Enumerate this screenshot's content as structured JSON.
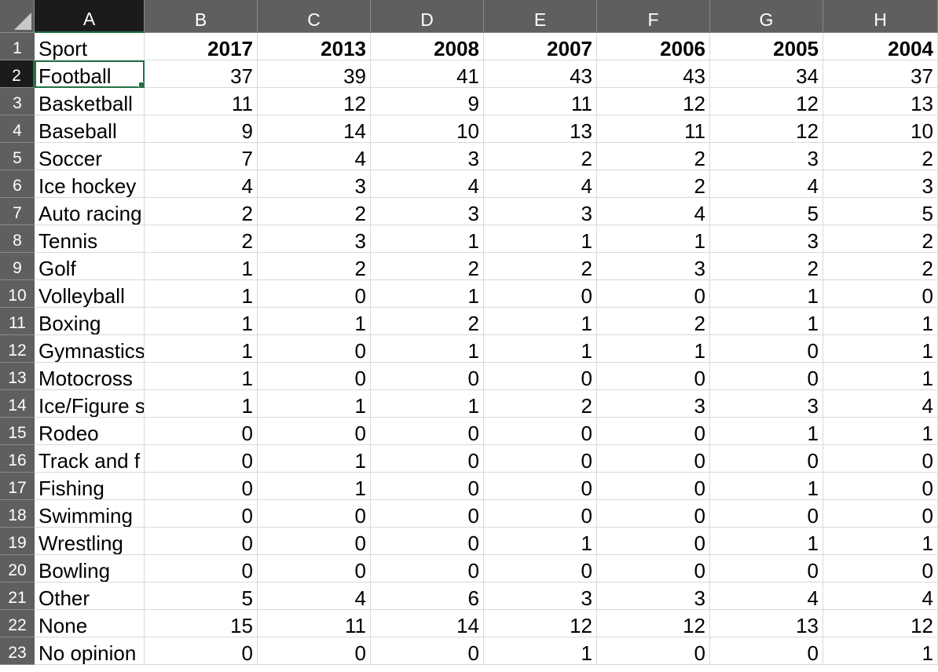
{
  "columns": [
    "A",
    "B",
    "C",
    "D",
    "E",
    "F",
    "G",
    "H"
  ],
  "selected_cell": "A2",
  "rows": [
    {
      "num": "1",
      "cells": [
        "Sport",
        "2017",
        "2013",
        "2008",
        "2007",
        "2006",
        "2005",
        "2004"
      ]
    },
    {
      "num": "2",
      "cells": [
        "Football",
        "37",
        "39",
        "41",
        "43",
        "43",
        "34",
        "37"
      ]
    },
    {
      "num": "3",
      "cells": [
        "Basketball",
        "11",
        "12",
        "9",
        "11",
        "12",
        "12",
        "13"
      ]
    },
    {
      "num": "4",
      "cells": [
        "Baseball",
        "9",
        "14",
        "10",
        "13",
        "11",
        "12",
        "10"
      ]
    },
    {
      "num": "5",
      "cells": [
        "Soccer",
        "7",
        "4",
        "3",
        "2",
        "2",
        "3",
        "2"
      ]
    },
    {
      "num": "6",
      "cells": [
        "Ice hockey",
        "4",
        "3",
        "4",
        "4",
        "2",
        "4",
        "3"
      ]
    },
    {
      "num": "7",
      "cells": [
        "Auto racing",
        "2",
        "2",
        "3",
        "3",
        "4",
        "5",
        "5"
      ]
    },
    {
      "num": "8",
      "cells": [
        "Tennis",
        "2",
        "3",
        "1",
        "1",
        "1",
        "3",
        "2"
      ]
    },
    {
      "num": "9",
      "cells": [
        "Golf",
        "1",
        "2",
        "2",
        "2",
        "3",
        "2",
        "2"
      ]
    },
    {
      "num": "10",
      "cells": [
        "Volleyball",
        "1",
        "0",
        "1",
        "0",
        "0",
        "1",
        "0"
      ]
    },
    {
      "num": "11",
      "cells": [
        "Boxing",
        "1",
        "1",
        "2",
        "1",
        "2",
        "1",
        "1"
      ]
    },
    {
      "num": "12",
      "cells": [
        "Gymnastics",
        "1",
        "0",
        "1",
        "1",
        "1",
        "0",
        "1"
      ]
    },
    {
      "num": "13",
      "cells": [
        "Motocross",
        "1",
        "0",
        "0",
        "0",
        "0",
        "0",
        "1"
      ]
    },
    {
      "num": "14",
      "cells": [
        "Ice/Figure s",
        "1",
        "1",
        "1",
        "2",
        "3",
        "3",
        "4"
      ]
    },
    {
      "num": "15",
      "cells": [
        "Rodeo",
        "0",
        "0",
        "0",
        "0",
        "0",
        "1",
        "1"
      ]
    },
    {
      "num": "16",
      "cells": [
        "Track and f",
        "0",
        "1",
        "0",
        "0",
        "0",
        "0",
        "0"
      ]
    },
    {
      "num": "17",
      "cells": [
        "Fishing",
        "0",
        "1",
        "0",
        "0",
        "0",
        "1",
        "0"
      ]
    },
    {
      "num": "18",
      "cells": [
        "Swimming",
        "0",
        "0",
        "0",
        "0",
        "0",
        "0",
        "0"
      ]
    },
    {
      "num": "19",
      "cells": [
        "Wrestling",
        "0",
        "0",
        "0",
        "1",
        "0",
        "1",
        "1"
      ]
    },
    {
      "num": "20",
      "cells": [
        "Bowling",
        "0",
        "0",
        "0",
        "0",
        "0",
        "0",
        "0"
      ]
    },
    {
      "num": "21",
      "cells": [
        "Other",
        "5",
        "4",
        "6",
        "3",
        "3",
        "4",
        "4"
      ]
    },
    {
      "num": "22",
      "cells": [
        "None",
        "15",
        "11",
        "14",
        "12",
        "12",
        "13",
        "12"
      ]
    },
    {
      "num": "23",
      "cells": [
        "No opinion",
        "0",
        "0",
        "0",
        "1",
        "0",
        "0",
        "1"
      ]
    }
  ]
}
